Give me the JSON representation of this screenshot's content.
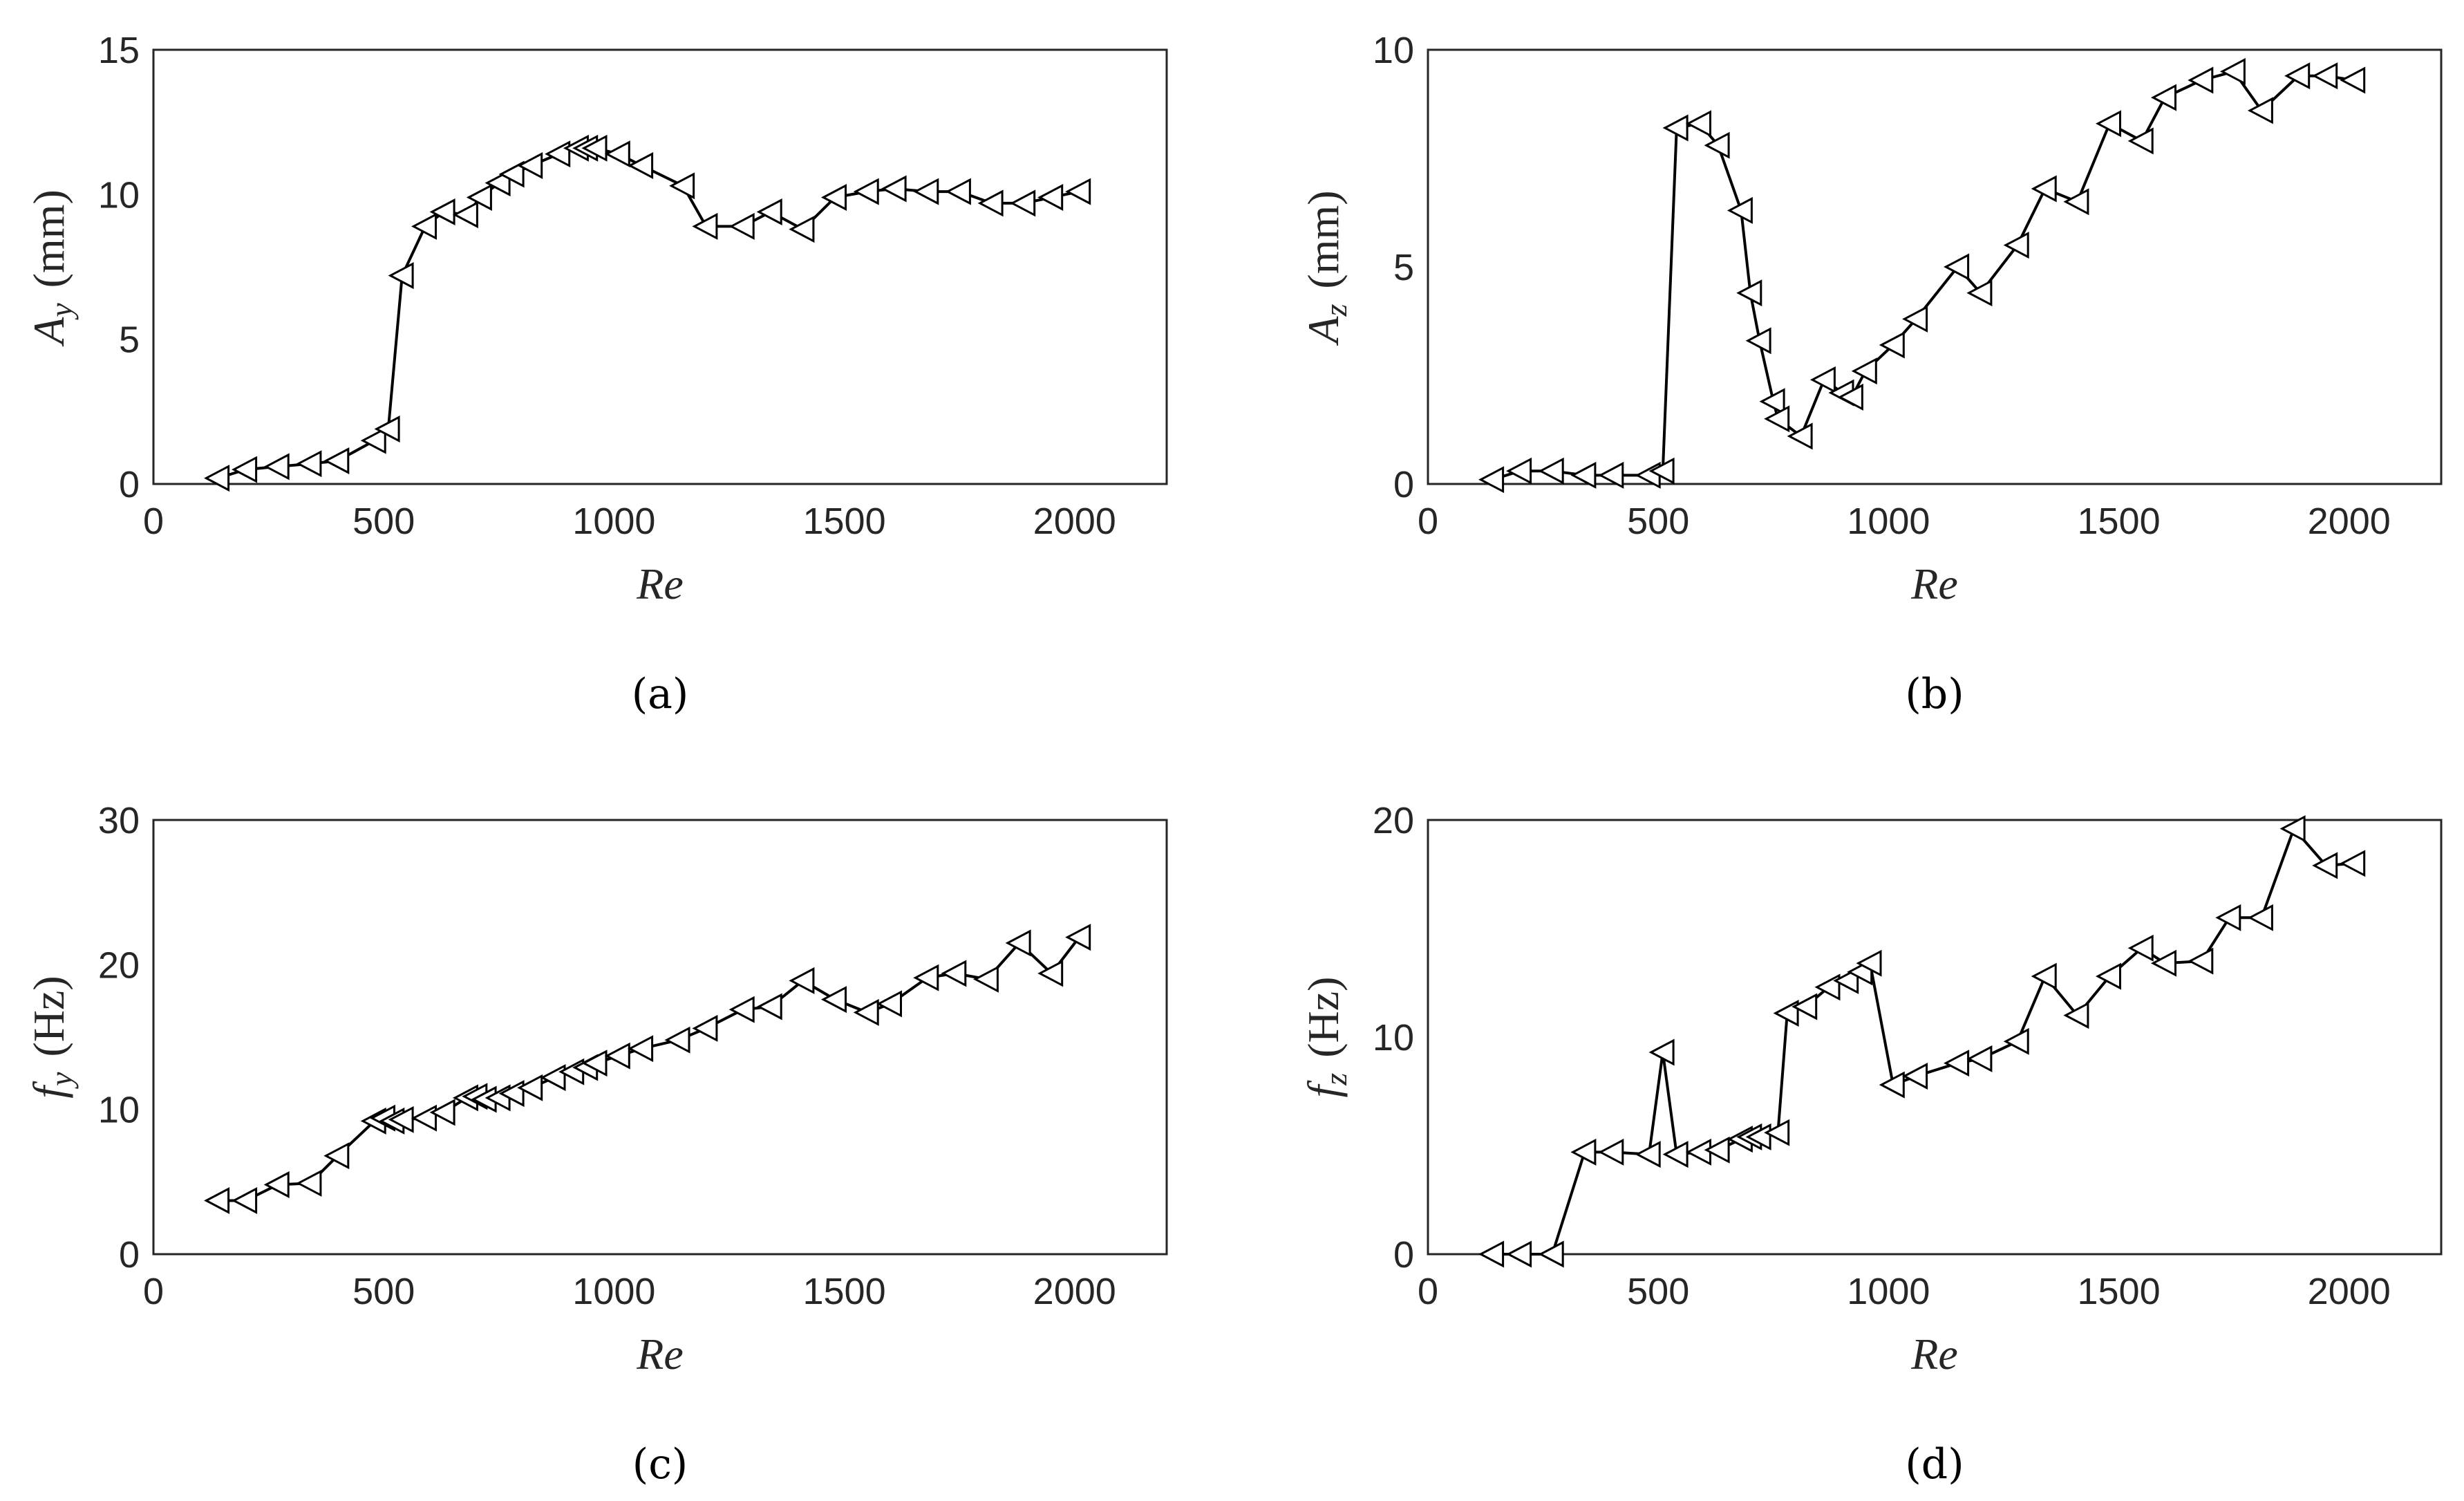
{
  "chart_data": [
    {
      "id": "a",
      "type": "line",
      "marker": "triangle-left",
      "caption": "(a)",
      "xlabel": "Re",
      "ylabel": {
        "symbol": "A",
        "subscript": "y",
        "unit": "(mm)"
      },
      "xlim": [
        0,
        2200
      ],
      "ylim": [
        0,
        15
      ],
      "xticks": [
        0,
        500,
        1000,
        1500,
        2000
      ],
      "yticks": [
        0,
        5,
        10,
        15
      ],
      "grid": true,
      "series": [
        {
          "name": "A_y",
          "x": [
            140,
            200,
            270,
            340,
            400,
            480,
            510,
            540,
            590,
            630,
            680,
            710,
            750,
            780,
            820,
            880,
            920,
            940,
            960,
            1010,
            1060,
            1150,
            1200,
            1280,
            1340,
            1410,
            1480,
            1550,
            1610,
            1680,
            1750,
            1820,
            1890,
            1950,
            2010
          ],
          "y": [
            0.2,
            0.5,
            0.6,
            0.7,
            0.8,
            1.5,
            1.9,
            7.2,
            8.9,
            9.4,
            9.3,
            9.9,
            10.4,
            10.7,
            11.0,
            11.4,
            11.6,
            11.6,
            11.6,
            11.4,
            11.0,
            10.3,
            8.9,
            8.9,
            9.4,
            8.8,
            9.9,
            10.1,
            10.2,
            10.1,
            10.1,
            9.7,
            9.7,
            9.9,
            10.1
          ]
        }
      ]
    },
    {
      "id": "b",
      "type": "line",
      "marker": "triangle-left",
      "caption": "(b)",
      "xlabel": "Re",
      "ylabel": {
        "symbol": "A",
        "subscript": "z",
        "unit": "(mm)"
      },
      "xlim": [
        0,
        2200
      ],
      "ylim": [
        0,
        10
      ],
      "xticks": [
        0,
        500,
        1000,
        1500,
        2000
      ],
      "yticks": [
        0,
        5,
        10
      ],
      "grid": true,
      "series": [
        {
          "name": "A_z",
          "x": [
            140,
            200,
            270,
            340,
            400,
            480,
            510,
            540,
            590,
            630,
            680,
            700,
            720,
            750,
            760,
            810,
            860,
            900,
            920,
            950,
            1010,
            1060,
            1150,
            1200,
            1280,
            1340,
            1410,
            1480,
            1550,
            1600,
            1680,
            1750,
            1810,
            1890,
            1950,
            2010
          ],
          "y": [
            0.1,
            0.3,
            0.3,
            0.2,
            0.2,
            0.2,
            0.3,
            8.2,
            8.3,
            7.8,
            6.3,
            4.4,
            3.3,
            1.9,
            1.5,
            1.1,
            2.4,
            2.1,
            2.0,
            2.6,
            3.2,
            3.8,
            5.0,
            4.4,
            5.5,
            6.8,
            6.5,
            8.3,
            7.9,
            8.9,
            9.3,
            9.5,
            8.6,
            9.4,
            9.4,
            9.3
          ]
        }
      ]
    },
    {
      "id": "c",
      "type": "line",
      "marker": "triangle-left",
      "caption": "(c)",
      "xlabel": "Re",
      "ylabel": {
        "symbol": "f",
        "subscript": "y",
        "unit": "(Hz)"
      },
      "xlim": [
        0,
        2200
      ],
      "ylim": [
        0,
        30
      ],
      "xticks": [
        0,
        500,
        1000,
        1500,
        2000
      ],
      "yticks": [
        0,
        10,
        20,
        30
      ],
      "grid": true,
      "series": [
        {
          "name": "f_y",
          "x": [
            140,
            200,
            270,
            340,
            400,
            480,
            500,
            520,
            540,
            590,
            630,
            680,
            700,
            720,
            750,
            780,
            820,
            870,
            910,
            940,
            960,
            1010,
            1060,
            1140,
            1200,
            1280,
            1340,
            1410,
            1480,
            1550,
            1600,
            1680,
            1740,
            1810,
            1880,
            1950,
            2010
          ],
          "y": [
            3.7,
            3.7,
            4.8,
            4.9,
            6.8,
            9.2,
            9.4,
            9.2,
            9.3,
            9.4,
            9.8,
            10.8,
            10.9,
            10.7,
            10.8,
            11.1,
            11.5,
            12.2,
            12.6,
            12.9,
            13.2,
            13.7,
            14.2,
            14.8,
            15.6,
            16.9,
            17.1,
            18.9,
            17.6,
            16.7,
            17.3,
            19.1,
            19.4,
            19.0,
            21.5,
            19.4,
            21.9
          ]
        }
      ]
    },
    {
      "id": "d",
      "type": "line",
      "marker": "triangle-left",
      "caption": "(d)",
      "xlabel": "Re",
      "ylabel": {
        "symbol": "f",
        "subscript": "z",
        "unit": "(Hz)"
      },
      "xlim": [
        0,
        2200
      ],
      "ylim": [
        0,
        20
      ],
      "xticks": [
        0,
        500,
        1000,
        1500,
        2000
      ],
      "yticks": [
        0,
        10,
        20
      ],
      "grid": true,
      "series": [
        {
          "name": "f_z",
          "x": [
            140,
            200,
            270,
            340,
            400,
            480,
            510,
            540,
            590,
            630,
            680,
            700,
            720,
            760,
            780,
            820,
            870,
            910,
            940,
            960,
            1010,
            1060,
            1150,
            1200,
            1280,
            1340,
            1410,
            1480,
            1550,
            1600,
            1680,
            1740,
            1810,
            1880,
            1950,
            2010
          ],
          "y": [
            0.0,
            0.0,
            0.0,
            4.7,
            4.7,
            4.6,
            9.3,
            4.6,
            4.7,
            4.8,
            5.3,
            5.4,
            5.4,
            5.6,
            11.1,
            11.4,
            12.3,
            12.6,
            13.0,
            13.4,
            7.8,
            8.2,
            8.8,
            9.0,
            9.8,
            12.8,
            11.0,
            12.8,
            14.1,
            13.4,
            13.5,
            15.5,
            15.5,
            19.6,
            17.9,
            18.0
          ]
        }
      ]
    }
  ]
}
